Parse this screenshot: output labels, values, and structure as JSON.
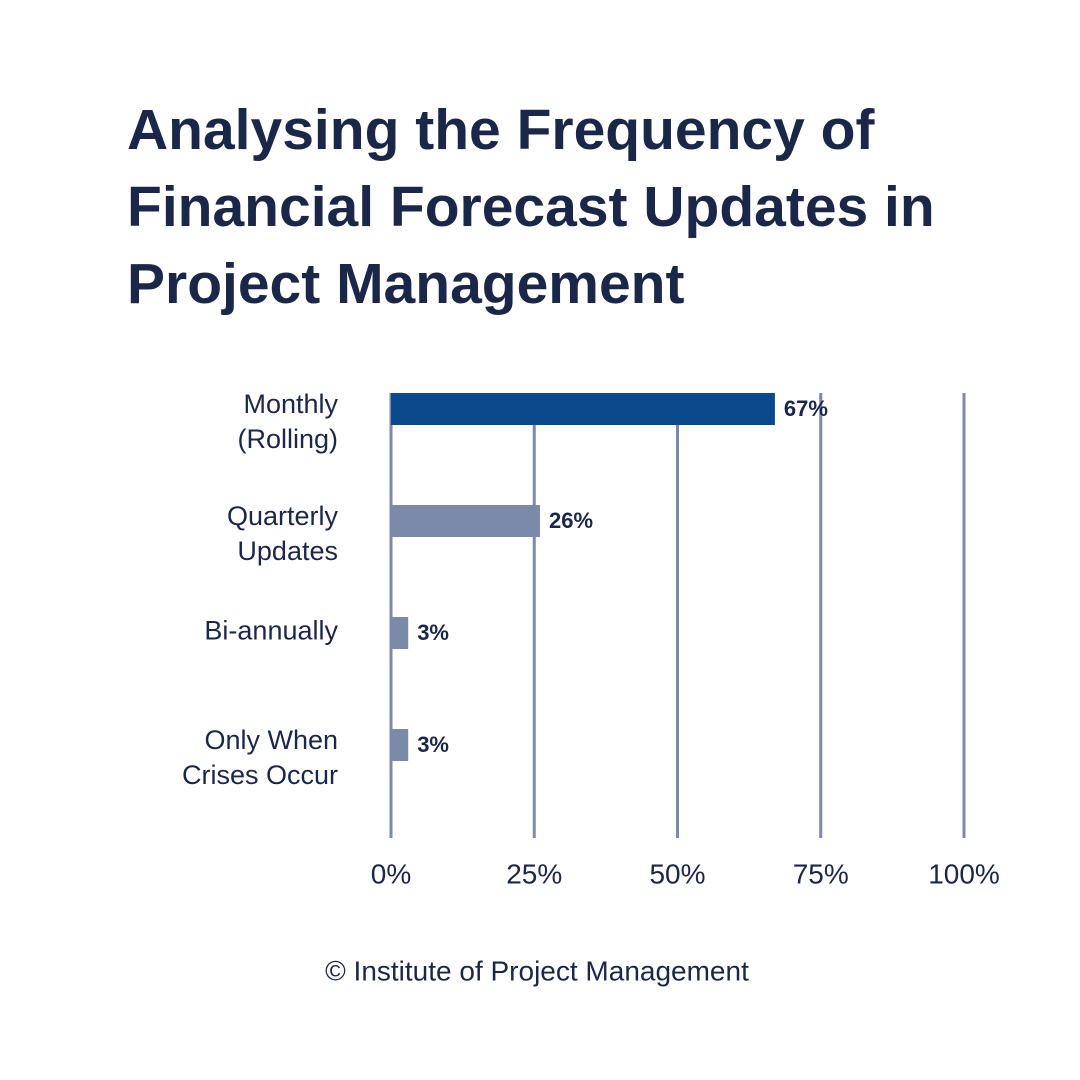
{
  "chart_data": {
    "type": "bar",
    "orientation": "horizontal",
    "title": "Analysing the Frequency of Financial Forecast Updates in Project Management",
    "categories": [
      "Monthly (Rolling)",
      "Quarterly Updates",
      "Bi-annually",
      "Only When Crises Occur"
    ],
    "values": [
      67,
      26,
      3,
      3
    ],
    "value_labels": [
      "67%",
      "26%",
      "3%",
      "3%"
    ],
    "colors": [
      "#0a4a8c",
      "#7a8aa8",
      "#7a8aa8",
      "#7a8aa8"
    ],
    "xlim": [
      0,
      100
    ],
    "xticks": [
      {
        "value": 0,
        "label": "0%"
      },
      {
        "value": 25,
        "label": "25%"
      },
      {
        "value": 50,
        "label": "50%"
      },
      {
        "value": 75,
        "label": "75%"
      },
      {
        "value": 100,
        "label": "100%"
      }
    ],
    "grid": true,
    "source": "© Institute of Project Management"
  }
}
